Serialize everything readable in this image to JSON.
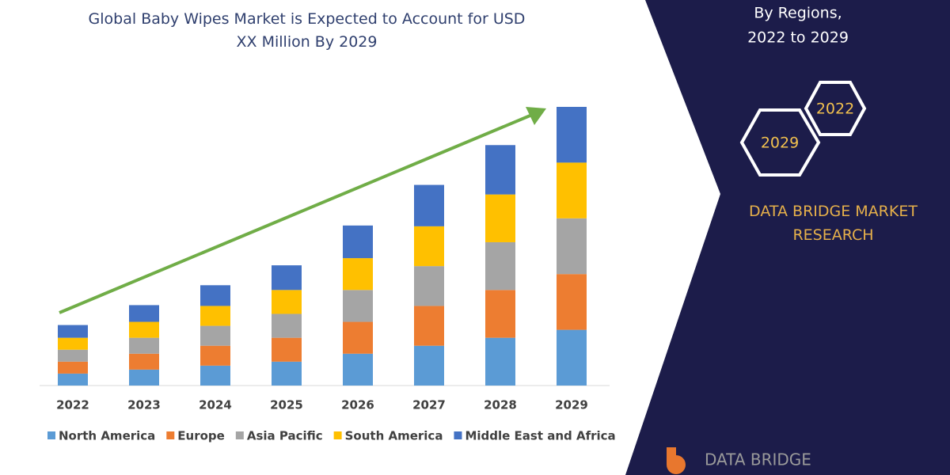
{
  "chart_data": {
    "type": "bar",
    "stacked": true,
    "title": "Global Baby Wipes Market is Expected to Account for USD XX Million By 2029",
    "categories": [
      "2022",
      "2023",
      "2024",
      "2025",
      "2026",
      "2027",
      "2028",
      "2029"
    ],
    "series": [
      {
        "name": "North America",
        "color": "#5b9bd5",
        "values": [
          15,
          20,
          25,
          30,
          40,
          50,
          60,
          70
        ]
      },
      {
        "name": "Europe",
        "color": "#ed7d31",
        "values": [
          15,
          20,
          25,
          30,
          40,
          50,
          60,
          70
        ]
      },
      {
        "name": "Asia Pacific",
        "color": "#a5a5a5",
        "values": [
          15,
          20,
          25,
          30,
          40,
          50,
          60,
          70
        ]
      },
      {
        "name": "South America",
        "color": "#ffc000",
        "values": [
          15,
          20,
          25,
          30,
          40,
          50,
          60,
          70
        ]
      },
      {
        "name": "Middle East and Africa",
        "color": "#4472c4",
        "values": [
          16,
          21,
          26,
          31,
          41,
          52,
          62,
          70
        ]
      }
    ],
    "legend": "bottom"
  },
  "panel": {
    "lines": [
      "By Regions,",
      "2022 to 2029"
    ],
    "badges": [
      "2022",
      "2029"
    ],
    "brand": "DATA BRIDGE MARKET RESEARCH",
    "logo": "DATA BRIDGE"
  }
}
